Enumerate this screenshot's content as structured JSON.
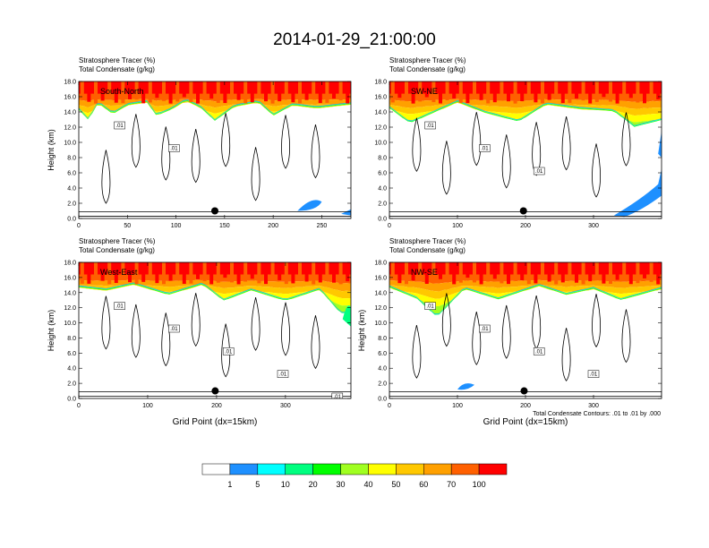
{
  "title": "2014-01-29_21:00:00",
  "colors": {
    "scale": [
      "#ffffff",
      "#1e90ff",
      "#00ffff",
      "#00ff80",
      "#00ff00",
      "#a0ff20",
      "#ffff00",
      "#ffc800",
      "#ffa000",
      "#ff6000",
      "#ff0000"
    ]
  },
  "colorbar": {
    "labels": [
      "1",
      "5",
      "10",
      "20",
      "30",
      "40",
      "50",
      "60",
      "70",
      "100"
    ]
  },
  "footnote": "Total Condensate Contours: .01 to .01 by .000",
  "chart_data": [
    {
      "type": "heatmap",
      "title": "Stratosphere Tracer (%)",
      "subtitle": "Total Condensate (g/kg)",
      "label": "South-North",
      "ylabel": "Height (km)",
      "xlabel": "",
      "ylim": [
        0,
        18
      ],
      "yticks": [
        "0.0",
        "2.0",
        "4.0",
        "6.0",
        "8.0",
        "10.0",
        "12.0",
        "14.0",
        "16.0",
        "18.0"
      ],
      "xlim": [
        0,
        280
      ],
      "xticks": [
        0,
        50,
        100,
        150,
        200,
        250
      ],
      "contour_labels": [
        ".01",
        ".01"
      ],
      "marker_x": 140,
      "tracer_profile": [
        [
          0,
          14.6
        ],
        [
          10,
          13.2
        ],
        [
          20,
          15.5
        ],
        [
          35,
          14.0
        ],
        [
          50,
          15.2
        ],
        [
          70,
          15.6
        ],
        [
          80,
          13.8
        ],
        [
          95,
          14.6
        ],
        [
          110,
          15.8
        ],
        [
          125,
          14.9
        ],
        [
          140,
          13.1
        ],
        [
          160,
          15.0
        ],
        [
          185,
          15.6
        ],
        [
          200,
          13.8
        ],
        [
          220,
          15.2
        ],
        [
          245,
          14.8
        ],
        [
          265,
          15.1
        ],
        [
          280,
          15.3
        ]
      ]
    },
    {
      "type": "heatmap",
      "title": "Stratosphere Tracer (%)",
      "subtitle": "Total Condensate (g/kg)",
      "label": "SW-NE",
      "ylabel": "",
      "xlabel": "",
      "ylim": [
        0,
        18
      ],
      "yticks": [
        "0.0",
        "2.0",
        "4.0",
        "6.0",
        "8.0",
        "10.0",
        "12.0",
        "14.0",
        "16.0",
        "18.0"
      ],
      "xlim": [
        0,
        400
      ],
      "xticks": [
        0,
        100,
        200,
        300
      ],
      "contour_labels": [
        ".01",
        ".01",
        ".01"
      ],
      "marker_x": 197,
      "tracer_profile": [
        [
          0,
          14.8
        ],
        [
          30,
          12.8
        ],
        [
          60,
          14.0
        ],
        [
          100,
          15.6
        ],
        [
          140,
          14.2
        ],
        [
          190,
          13.0
        ],
        [
          230,
          15.3
        ],
        [
          280,
          14.7
        ],
        [
          330,
          14.4
        ],
        [
          360,
          12.3
        ],
        [
          400,
          13.2
        ]
      ]
    },
    {
      "type": "heatmap",
      "title": "Stratosphere Tracer (%)",
      "subtitle": "Total Condensate (g/kg)",
      "label": "West-East",
      "ylabel": "Height (km)",
      "xlabel": "Grid Point (dx=15km)",
      "ylim": [
        0,
        18
      ],
      "yticks": [
        "0.0",
        "2.0",
        "4.0",
        "6.0",
        "8.0",
        "10.0",
        "12.0",
        "14.0",
        "16.0",
        "18.0"
      ],
      "xlim": [
        0,
        395
      ],
      "xticks": [
        0,
        100,
        200,
        300
      ],
      "contour_labels": [
        ".01",
        ".01",
        ".01",
        ".01",
        ".01"
      ],
      "marker_x": 198,
      "tracer_profile": [
        [
          0,
          15.0
        ],
        [
          40,
          14.6
        ],
        [
          80,
          15.4
        ],
        [
          130,
          14.0
        ],
        [
          180,
          15.4
        ],
        [
          210,
          13.2
        ],
        [
          250,
          14.6
        ],
        [
          300,
          13.2
        ],
        [
          350,
          14.7
        ],
        [
          380,
          11.5
        ],
        [
          395,
          11.5
        ]
      ]
    },
    {
      "type": "heatmap",
      "title": "Stratosphere Tracer (%)",
      "subtitle": "Total Condensate (g/kg)",
      "label": "NW-SE",
      "ylabel": "Height (km)",
      "xlabel": "Grid Point (dx=15km)",
      "ylim": [
        0,
        18
      ],
      "yticks": [
        "0.0",
        "2.0",
        "4.0",
        "6.0",
        "8.0",
        "10.0",
        "12.0",
        "14.0",
        "16.0",
        "18.0"
      ],
      "xlim": [
        0,
        400
      ],
      "xticks": [
        0,
        100,
        200,
        300
      ],
      "contour_labels": [
        ".01",
        ".01",
        ".01",
        ".01"
      ],
      "marker_x": 198,
      "tracer_profile": [
        [
          0,
          15.0
        ],
        [
          40,
          13.5
        ],
        [
          70,
          11.0
        ],
        [
          110,
          14.8
        ],
        [
          160,
          13.4
        ],
        [
          220,
          15.2
        ],
        [
          260,
          14.0
        ],
        [
          300,
          14.8
        ],
        [
          340,
          13.3
        ],
        [
          400,
          14.8
        ]
      ]
    }
  ]
}
